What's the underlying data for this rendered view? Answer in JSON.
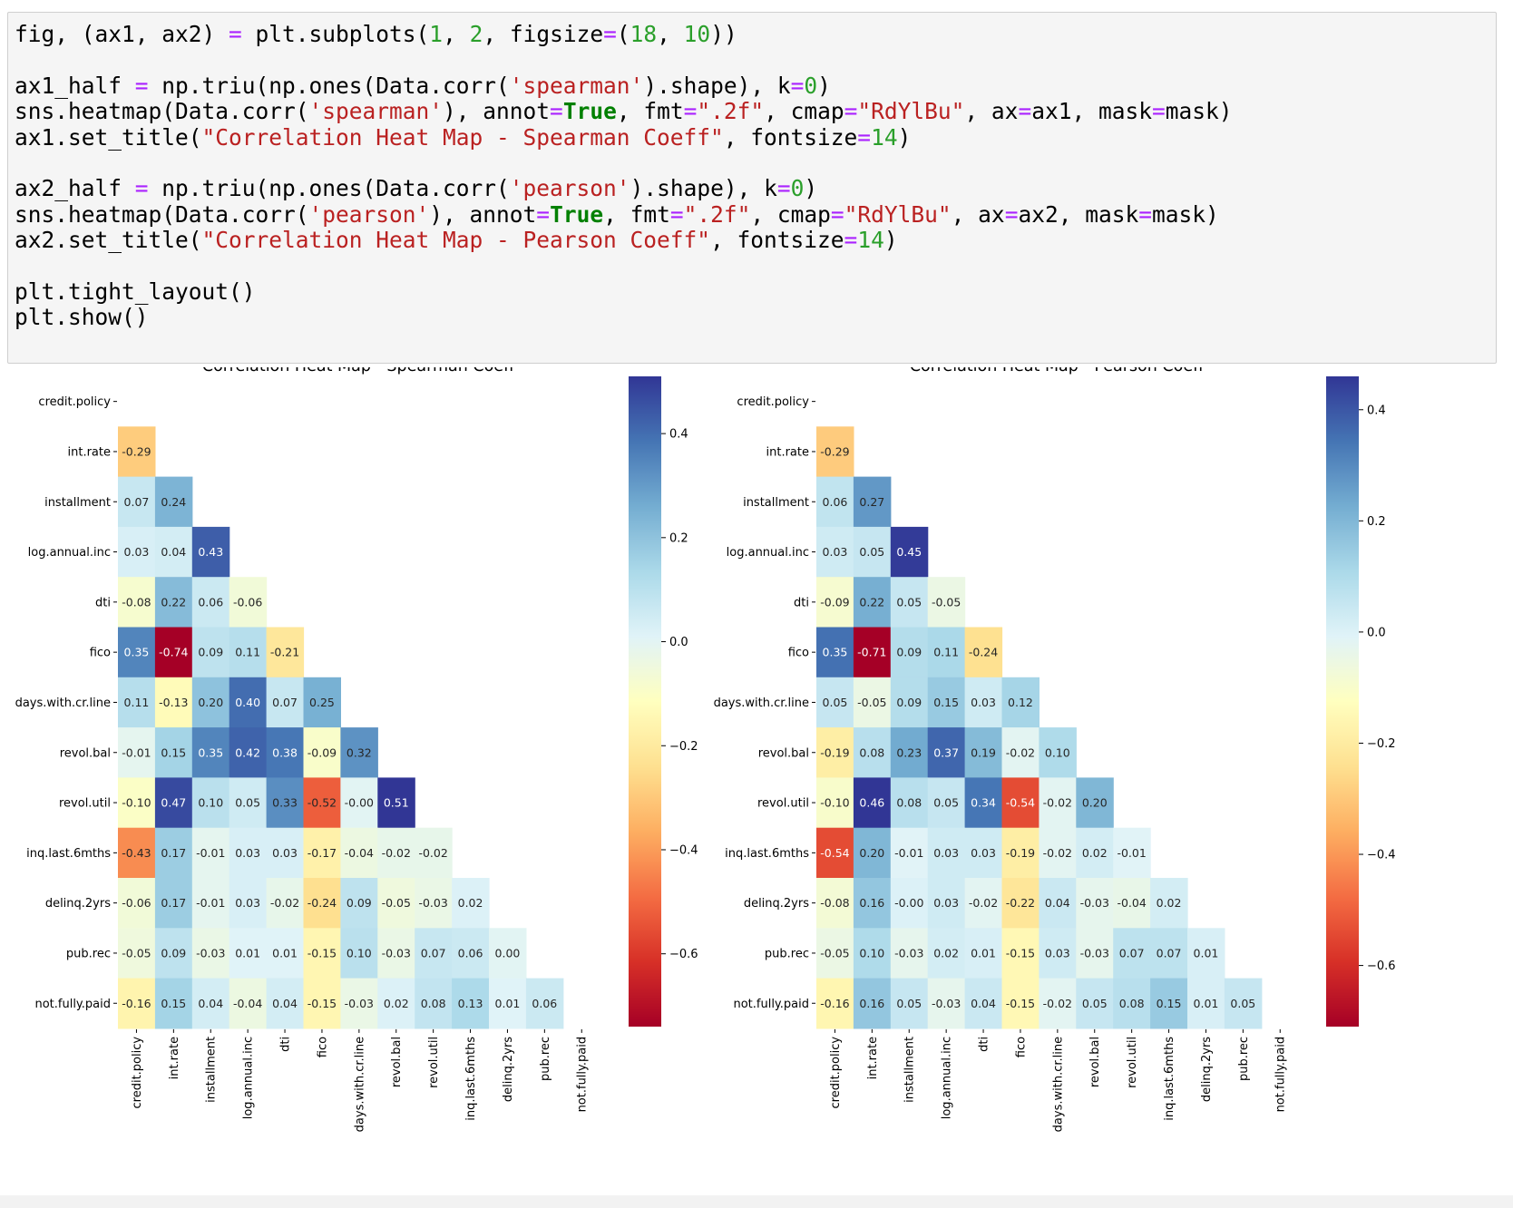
{
  "code": {
    "lines": [
      [
        [
          "plain",
          "fig, (ax1, ax2) "
        ],
        [
          "op",
          "="
        ],
        [
          "plain",
          " plt.subplots("
        ],
        [
          "num",
          "1"
        ],
        [
          "plain",
          ", "
        ],
        [
          "num",
          "2"
        ],
        [
          "plain",
          ", figsize"
        ],
        [
          "op",
          "="
        ],
        [
          "plain",
          "("
        ],
        [
          "num",
          "18"
        ],
        [
          "plain",
          ", "
        ],
        [
          "num",
          "10"
        ],
        [
          "plain",
          "))"
        ]
      ],
      [],
      [
        [
          "plain",
          "ax1_half "
        ],
        [
          "op",
          "="
        ],
        [
          "plain",
          " np.triu(np.ones(Data.corr("
        ],
        [
          "str",
          "'spearman'"
        ],
        [
          "plain",
          ").shape), k"
        ],
        [
          "op",
          "="
        ],
        [
          "num",
          "0"
        ],
        [
          "plain",
          ")"
        ]
      ],
      [
        [
          "plain",
          "sns.heatmap(Data.corr("
        ],
        [
          "str",
          "'spearman'"
        ],
        [
          "plain",
          "), annot"
        ],
        [
          "op",
          "="
        ],
        [
          "kw",
          "True"
        ],
        [
          "plain",
          ", fmt"
        ],
        [
          "op",
          "="
        ],
        [
          "str",
          "\".2f\""
        ],
        [
          "plain",
          ", cmap"
        ],
        [
          "op",
          "="
        ],
        [
          "str",
          "\"RdYlBu\""
        ],
        [
          "plain",
          ", ax"
        ],
        [
          "op",
          "="
        ],
        [
          "plain",
          "ax1, mask"
        ],
        [
          "op",
          "="
        ],
        [
          "plain",
          "mask)"
        ]
      ],
      [
        [
          "plain",
          "ax1.set_title("
        ],
        [
          "str",
          "\"Correlation Heat Map - Spearman Coeff\""
        ],
        [
          "plain",
          ", fontsize"
        ],
        [
          "op",
          "="
        ],
        [
          "num",
          "14"
        ],
        [
          "plain",
          ")"
        ]
      ],
      [],
      [
        [
          "plain",
          "ax2_half "
        ],
        [
          "op",
          "="
        ],
        [
          "plain",
          " np.triu(np.ones(Data.corr("
        ],
        [
          "str",
          "'pearson'"
        ],
        [
          "plain",
          ").shape), k"
        ],
        [
          "op",
          "="
        ],
        [
          "num",
          "0"
        ],
        [
          "plain",
          ")"
        ]
      ],
      [
        [
          "plain",
          "sns.heatmap(Data.corr("
        ],
        [
          "str",
          "'pearson'"
        ],
        [
          "plain",
          "), annot"
        ],
        [
          "op",
          "="
        ],
        [
          "kw",
          "True"
        ],
        [
          "plain",
          ", fmt"
        ],
        [
          "op",
          "="
        ],
        [
          "str",
          "\".2f\""
        ],
        [
          "plain",
          ", cmap"
        ],
        [
          "op",
          "="
        ],
        [
          "str",
          "\"RdYlBu\""
        ],
        [
          "plain",
          ", ax"
        ],
        [
          "op",
          "="
        ],
        [
          "plain",
          "ax2, mask"
        ],
        [
          "op",
          "="
        ],
        [
          "plain",
          "mask)"
        ]
      ],
      [
        [
          "plain",
          "ax2.set_title("
        ],
        [
          "str",
          "\"Correlation Heat Map - Pearson Coeff\""
        ],
        [
          "plain",
          ", fontsize"
        ],
        [
          "op",
          "="
        ],
        [
          "num",
          "14"
        ],
        [
          "plain",
          ")"
        ]
      ],
      [],
      [
        [
          "plain",
          "plt.tight_layout()"
        ]
      ],
      [
        [
          "plain",
          "plt.show()"
        ]
      ]
    ]
  },
  "chart_data": [
    {
      "type": "heatmap",
      "title": "Correlation Heat Map - Spearman Coeff",
      "labels": [
        "credit.policy",
        "int.rate",
        "installment",
        "log.annual.inc",
        "dti",
        "fico",
        "days.with.cr.line",
        "revol.bal",
        "revol.util",
        "inq.last.6mths",
        "delinq.2yrs",
        "pub.rec",
        "not.fully.paid"
      ],
      "mask": "upper-triangle-including-diagonal",
      "colormap": "RdYlBu",
      "vmin": -0.74,
      "vmax": 0.51,
      "colorbar_ticks": [
        "0.4",
        "0.2",
        "0.0",
        "−0.2",
        "−0.4",
        "−0.6"
      ],
      "colorbar_tick_values": [
        0.4,
        0.2,
        0.0,
        -0.2,
        -0.4,
        -0.6
      ],
      "annotations": [
        [],
        [
          "-0.29"
        ],
        [
          "0.07",
          "0.24"
        ],
        [
          "0.03",
          "0.04",
          "0.43"
        ],
        [
          "-0.08",
          "0.22",
          "0.06",
          "-0.06"
        ],
        [
          "0.35",
          "-0.74",
          "0.09",
          "0.11",
          "-0.21"
        ],
        [
          "0.11",
          "-0.13",
          "0.20",
          "0.40",
          "0.07",
          "0.25"
        ],
        [
          "-0.01",
          "0.15",
          "0.35",
          "0.42",
          "0.38",
          "-0.09",
          "0.32"
        ],
        [
          "-0.10",
          "0.47",
          "0.10",
          "0.05",
          "0.33",
          "-0.52",
          "-0.00",
          "0.51"
        ],
        [
          "-0.43",
          "0.17",
          "-0.01",
          "0.03",
          "0.03",
          "-0.17",
          "-0.04",
          "-0.02",
          "-0.02"
        ],
        [
          "-0.06",
          "0.17",
          "-0.01",
          "0.03",
          "-0.02",
          "-0.24",
          "0.09",
          "-0.05",
          "-0.03",
          "0.02"
        ],
        [
          "-0.05",
          "0.09",
          "-0.03",
          "0.01",
          "0.01",
          "-0.15",
          "0.10",
          "-0.03",
          "0.07",
          "0.06",
          "0.00"
        ],
        [
          "-0.16",
          "0.15",
          "0.04",
          "-0.04",
          "0.04",
          "-0.15",
          "-0.03",
          "0.02",
          "0.08",
          "0.13",
          "0.01",
          "0.06"
        ]
      ]
    },
    {
      "type": "heatmap",
      "title": "Correlation Heat Map - Pearson Coeff",
      "labels": [
        "credit.policy",
        "int.rate",
        "installment",
        "log.annual.inc",
        "dti",
        "fico",
        "days.with.cr.line",
        "revol.bal",
        "revol.util",
        "inq.last.6mths",
        "delinq.2yrs",
        "pub.rec",
        "not.fully.paid"
      ],
      "mask": "upper-triangle-including-diagonal",
      "colormap": "RdYlBu",
      "vmin": -0.71,
      "vmax": 0.46,
      "colorbar_ticks": [
        "0.4",
        "0.2",
        "0.0",
        "−0.2",
        "−0.4",
        "−0.6"
      ],
      "colorbar_tick_values": [
        0.4,
        0.2,
        0.0,
        -0.2,
        -0.4,
        -0.6
      ],
      "annotations": [
        [],
        [
          "-0.29"
        ],
        [
          "0.06",
          "0.27"
        ],
        [
          "0.03",
          "0.05",
          "0.45"
        ],
        [
          "-0.09",
          "0.22",
          "0.05",
          "-0.05"
        ],
        [
          "0.35",
          "-0.71",
          "0.09",
          "0.11",
          "-0.24"
        ],
        [
          "0.05",
          "-0.05",
          "0.09",
          "0.15",
          "0.03",
          "0.12"
        ],
        [
          "-0.19",
          "0.08",
          "0.23",
          "0.37",
          "0.19",
          "-0.02",
          "0.10"
        ],
        [
          "-0.10",
          "0.46",
          "0.08",
          "0.05",
          "0.34",
          "-0.54",
          "-0.02",
          "0.20"
        ],
        [
          "-0.54",
          "0.20",
          "-0.01",
          "0.03",
          "0.03",
          "-0.19",
          "-0.02",
          "0.02",
          "-0.01"
        ],
        [
          "-0.08",
          "0.16",
          "-0.00",
          "0.03",
          "-0.02",
          "-0.22",
          "0.04",
          "-0.03",
          "-0.04",
          "0.02"
        ],
        [
          "-0.05",
          "0.10",
          "-0.03",
          "0.02",
          "0.01",
          "-0.15",
          "0.03",
          "-0.03",
          "0.07",
          "0.07",
          "0.01"
        ],
        [
          "-0.16",
          "0.16",
          "0.05",
          "-0.03",
          "0.04",
          "-0.15",
          "-0.02",
          "0.05",
          "0.08",
          "0.15",
          "0.01",
          "0.05"
        ]
      ]
    }
  ]
}
